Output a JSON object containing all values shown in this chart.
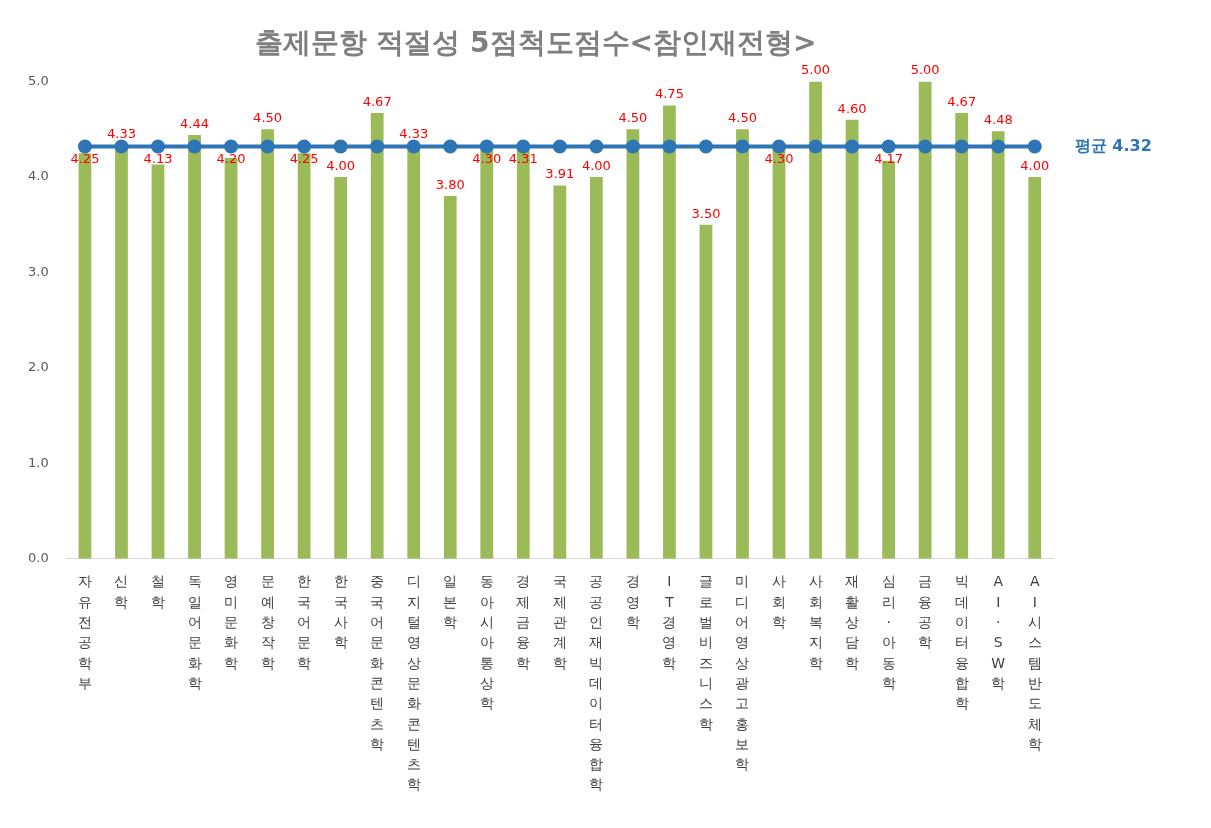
{
  "chart_data": {
    "type": "bar",
    "title": "출제문항 적절성 5점척도점수<참인재전형>",
    "categories": [
      "자유전공학부",
      "신학",
      "철학",
      "독일어문화학",
      "영미문화학",
      "문예창작학",
      "한국어문학",
      "한국사학",
      "중국어문화콘텐츠학",
      "디지털영상문화콘텐츠학",
      "일본학",
      "동아시아통상학",
      "경제금융학",
      "국제관계학",
      "공공인재빅데이터융합학",
      "경영학",
      "IT경영학",
      "글로벌비즈니스학",
      "미디어영상광고홍보학",
      "사회학",
      "사회복지학",
      "재활상담학",
      "심리·아동학",
      "금융공학",
      "빅데이터융합학",
      "AI·SW학",
      "AI시스템반도체학"
    ],
    "series": [
      {
        "color": "#9bbb59",
        "values": [
          4.25,
          4.33,
          4.13,
          4.44,
          4.2,
          4.5,
          4.25,
          4.0,
          4.67,
          4.33,
          3.8,
          4.3,
          4.31,
          3.91,
          4.0,
          4.5,
          4.75,
          3.5,
          4.5,
          4.3,
          5.0,
          4.6,
          4.17,
          5.0,
          4.67,
          4.48,
          4.0
        ],
        "value_labels": [
          "4.25",
          "4.33",
          "4.13",
          "4.44",
          "4.20",
          "4.50",
          "4.25",
          "4.00",
          "4.67",
          "4.33",
          "3.80",
          "4.30",
          "4.31",
          "3.91",
          "4.00",
          "4.50",
          "4.75",
          "3.50",
          "4.50",
          "4.30",
          "5.00",
          "4.60",
          "4.17",
          "5.00",
          "4.67",
          "4.48",
          "4.00"
        ]
      },
      {
        "type": "line",
        "name": "평균 4.32",
        "color": "#2e75b6",
        "values": [
          4.32,
          4.32,
          4.32,
          4.32,
          4.32,
          4.32,
          4.32,
          4.32,
          4.32,
          4.32,
          4.32,
          4.32,
          4.32,
          4.32,
          4.32,
          4.32,
          4.32,
          4.32,
          4.32,
          4.32,
          4.32,
          4.32,
          4.32,
          4.32,
          4.32,
          4.32,
          4.32
        ]
      }
    ],
    "ylim": [
      0,
      5
    ],
    "yticks": [
      {
        "value": 0,
        "label": "0.0"
      },
      {
        "value": 1,
        "label": "1.0"
      },
      {
        "value": 2,
        "label": "2.0"
      },
      {
        "value": 3,
        "label": "3.0"
      },
      {
        "value": 4,
        "label": "4.0"
      },
      {
        "value": 5,
        "label": "5.0"
      }
    ],
    "grid": false,
    "legend": false,
    "marker": "circle",
    "line_style": "solid"
  }
}
